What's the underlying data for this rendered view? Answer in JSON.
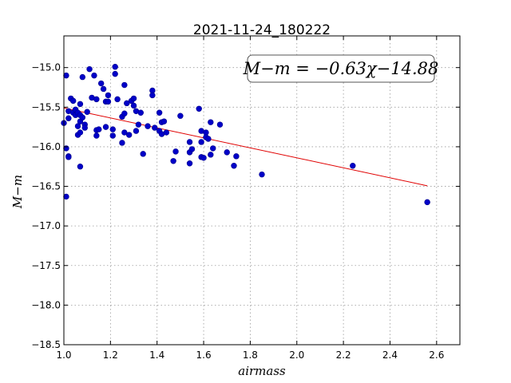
{
  "chart_data": {
    "type": "scatter",
    "title": "2021-11-24_180222",
    "xlabel": "airmass",
    "ylabel": "M−m",
    "xlim": [
      1.0,
      2.7
    ],
    "ylim": [
      -18.5,
      -14.6
    ],
    "x_ticks": [
      1.0,
      1.2,
      1.4,
      1.6,
      1.8,
      2.0,
      2.2,
      2.4,
      2.6
    ],
    "x_tick_labels": [
      "1.0",
      "1.2",
      "1.4",
      "1.6",
      "1.8",
      "2.0",
      "2.2",
      "2.4",
      "2.6"
    ],
    "y_ticks": [
      -15.0,
      -15.5,
      -16.0,
      -16.5,
      -17.0,
      -17.5,
      -18.0,
      -18.5
    ],
    "y_tick_labels": [
      "−15.0",
      "−15.5",
      "−16.0",
      "−16.5",
      "−17.0",
      "−17.5",
      "−18.0",
      "−18.5"
    ],
    "grid": true,
    "annotation": "M−m = −0.63χ−14.88",
    "annotation_position": "top-right",
    "colors": {
      "points": "#0000c8",
      "fit": "#e00000"
    },
    "fit": {
      "slope": -0.63,
      "intercept": -14.88,
      "x_range": [
        1.0,
        2.56
      ]
    },
    "points": [
      [
        1.0,
        -15.7
      ],
      [
        1.01,
        -16.02
      ],
      [
        1.01,
        -16.63
      ],
      [
        1.01,
        -15.1
      ],
      [
        1.02,
        -16.12
      ],
      [
        1.02,
        -16.13
      ],
      [
        1.02,
        -15.55
      ],
      [
        1.02,
        -15.64
      ],
      [
        1.03,
        -15.39
      ],
      [
        1.04,
        -15.42
      ],
      [
        1.04,
        -15.57
      ],
      [
        1.05,
        -15.6
      ],
      [
        1.05,
        -15.53
      ],
      [
        1.06,
        -15.74
      ],
      [
        1.06,
        -15.57
      ],
      [
        1.06,
        -15.85
      ],
      [
        1.07,
        -15.46
      ],
      [
        1.07,
        -15.6
      ],
      [
        1.07,
        -15.82
      ],
      [
        1.07,
        -15.68
      ],
      [
        1.07,
        -16.25
      ],
      [
        1.08,
        -15.12
      ],
      [
        1.08,
        -15.63
      ],
      [
        1.09,
        -15.72
      ],
      [
        1.09,
        -15.76
      ],
      [
        1.1,
        -15.56
      ],
      [
        1.11,
        -15.02
      ],
      [
        1.12,
        -15.38
      ],
      [
        1.13,
        -15.1
      ],
      [
        1.14,
        -15.4
      ],
      [
        1.14,
        -15.79
      ],
      [
        1.14,
        -15.86
      ],
      [
        1.15,
        -15.78
      ],
      [
        1.16,
        -15.2
      ],
      [
        1.17,
        -15.27
      ],
      [
        1.18,
        -15.43
      ],
      [
        1.18,
        -15.75
      ],
      [
        1.19,
        -15.35
      ],
      [
        1.19,
        -15.43
      ],
      [
        1.21,
        -15.78
      ],
      [
        1.21,
        -15.86
      ],
      [
        1.22,
        -14.99
      ],
      [
        1.22,
        -15.08
      ],
      [
        1.23,
        -15.4
      ],
      [
        1.25,
        -15.95
      ],
      [
        1.25,
        -15.62
      ],
      [
        1.26,
        -15.58
      ],
      [
        1.26,
        -15.22
      ],
      [
        1.26,
        -15.82
      ],
      [
        1.27,
        -15.45
      ],
      [
        1.28,
        -15.85
      ],
      [
        1.29,
        -15.42
      ],
      [
        1.3,
        -15.39
      ],
      [
        1.3,
        -15.48
      ],
      [
        1.31,
        -15.55
      ],
      [
        1.31,
        -15.8
      ],
      [
        1.32,
        -15.72
      ],
      [
        1.33,
        -15.57
      ],
      [
        1.34,
        -16.09
      ],
      [
        1.36,
        -15.74
      ],
      [
        1.38,
        -15.29
      ],
      [
        1.38,
        -15.35
      ],
      [
        1.39,
        -15.76
      ],
      [
        1.41,
        -15.57
      ],
      [
        1.41,
        -15.8
      ],
      [
        1.42,
        -15.84
      ],
      [
        1.42,
        -15.69
      ],
      [
        1.43,
        -15.68
      ],
      [
        1.44,
        -15.82
      ],
      [
        1.47,
        -16.18
      ],
      [
        1.48,
        -16.06
      ],
      [
        1.5,
        -15.61
      ],
      [
        1.54,
        -16.07
      ],
      [
        1.54,
        -15.94
      ],
      [
        1.54,
        -16.21
      ],
      [
        1.55,
        -16.03
      ],
      [
        1.58,
        -15.52
      ],
      [
        1.59,
        -15.8
      ],
      [
        1.59,
        -16.13
      ],
      [
        1.59,
        -15.94
      ],
      [
        1.6,
        -16.14
      ],
      [
        1.61,
        -15.82
      ],
      [
        1.61,
        -15.88
      ],
      [
        1.62,
        -15.9
      ],
      [
        1.63,
        -15.69
      ],
      [
        1.63,
        -16.1
      ],
      [
        1.64,
        -16.02
      ],
      [
        1.67,
        -15.72
      ],
      [
        1.7,
        -16.07
      ],
      [
        1.73,
        -16.24
      ],
      [
        1.74,
        -16.12
      ],
      [
        1.85,
        -16.35
      ],
      [
        2.24,
        -16.24
      ],
      [
        2.56,
        -16.7
      ]
    ]
  }
}
